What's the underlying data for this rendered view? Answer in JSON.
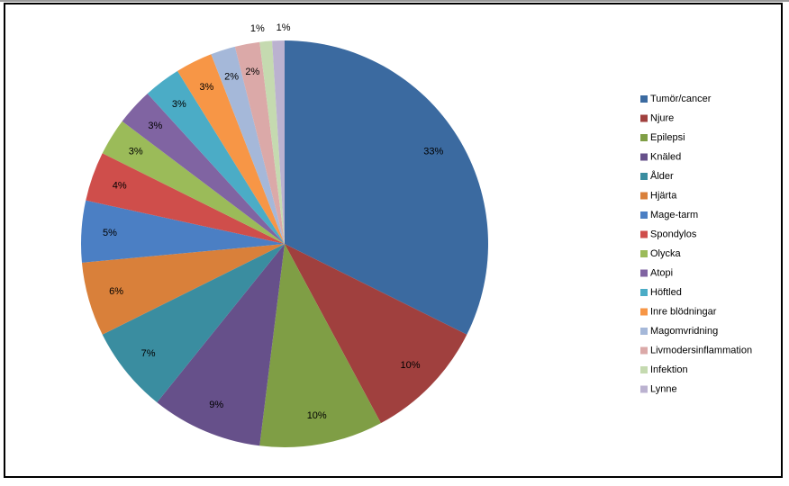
{
  "chart_data": {
    "type": "pie",
    "categories": [
      "Tumör/cancer",
      "Njure",
      "Epilepsi",
      "Knäled",
      "Ålder",
      "Hjärta",
      "Mage-tarm",
      "Spondylos",
      "Olycka",
      "Atopi",
      "Höftled",
      "Inre blödningar",
      "Magomvridning",
      "Livmodersinflammation",
      "Infektion",
      "Lynne"
    ],
    "values": [
      33,
      10,
      10,
      9,
      7,
      6,
      5,
      4,
      3,
      3,
      3,
      3,
      2,
      2,
      1,
      1
    ],
    "value_labels": [
      "33%",
      "10%",
      "10%",
      "9%",
      "7%",
      "6%",
      "5%",
      "4%",
      "3%",
      "3%",
      "3%",
      "3%",
      "2%",
      "2%",
      "1%",
      "1%"
    ],
    "colors": [
      "#3b6aa0",
      "#a0403e",
      "#7f9e45",
      "#66508a",
      "#3a8da0",
      "#d9803a",
      "#4b7fc4",
      "#cf4e4b",
      "#9bbb59",
      "#8064a2",
      "#4bacc6",
      "#f79646",
      "#a5b8d9",
      "#dba9a8",
      "#c5dab0",
      "#bbb2d0"
    ],
    "legend": "right"
  }
}
